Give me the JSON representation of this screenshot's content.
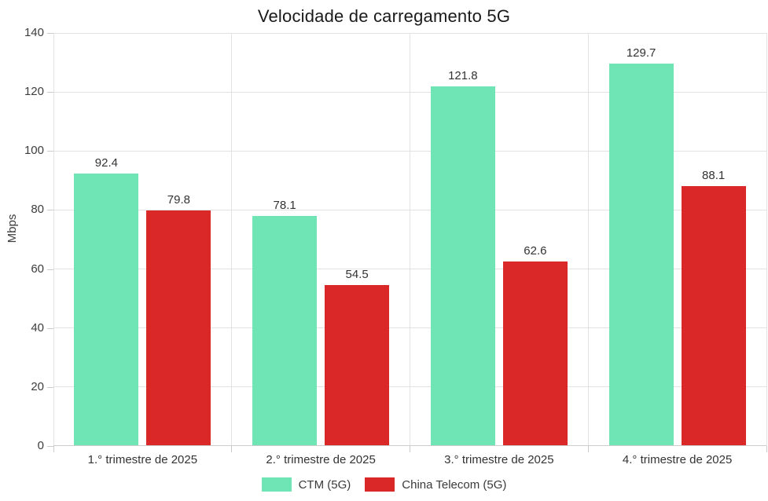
{
  "title": "Velocidade de carregamento 5G",
  "chart_data": {
    "type": "bar",
    "title": "Velocidade de carregamento 5G",
    "categories": [
      "1.° trimestre de 2025",
      "2.° trimestre de 2025",
      "3.° trimestre de 2025",
      "4.° trimestre de 2025"
    ],
    "series": [
      {
        "name": "CTM (5G)",
        "color": "#6FE4B4",
        "values": [
          92.4,
          78.1,
          121.8,
          129.7
        ]
      },
      {
        "name": "China Telecom (5G)",
        "color": "#DA2727",
        "values": [
          79.8,
          54.5,
          62.6,
          88.1
        ]
      }
    ],
    "xlabel": "",
    "ylabel": "Mbps",
    "ylim": [
      0,
      140
    ],
    "yticks": [
      0,
      20,
      40,
      60,
      80,
      100,
      120,
      140
    ],
    "grid": true,
    "legend_position": "bottom"
  },
  "colors": {
    "background": "#ffffff",
    "gridline": "#e2e2e2",
    "axis": "#cccccc",
    "title_text": "#1a1a1a",
    "tick_text": "#3d3d3d",
    "data_label_text": "#333333"
  }
}
